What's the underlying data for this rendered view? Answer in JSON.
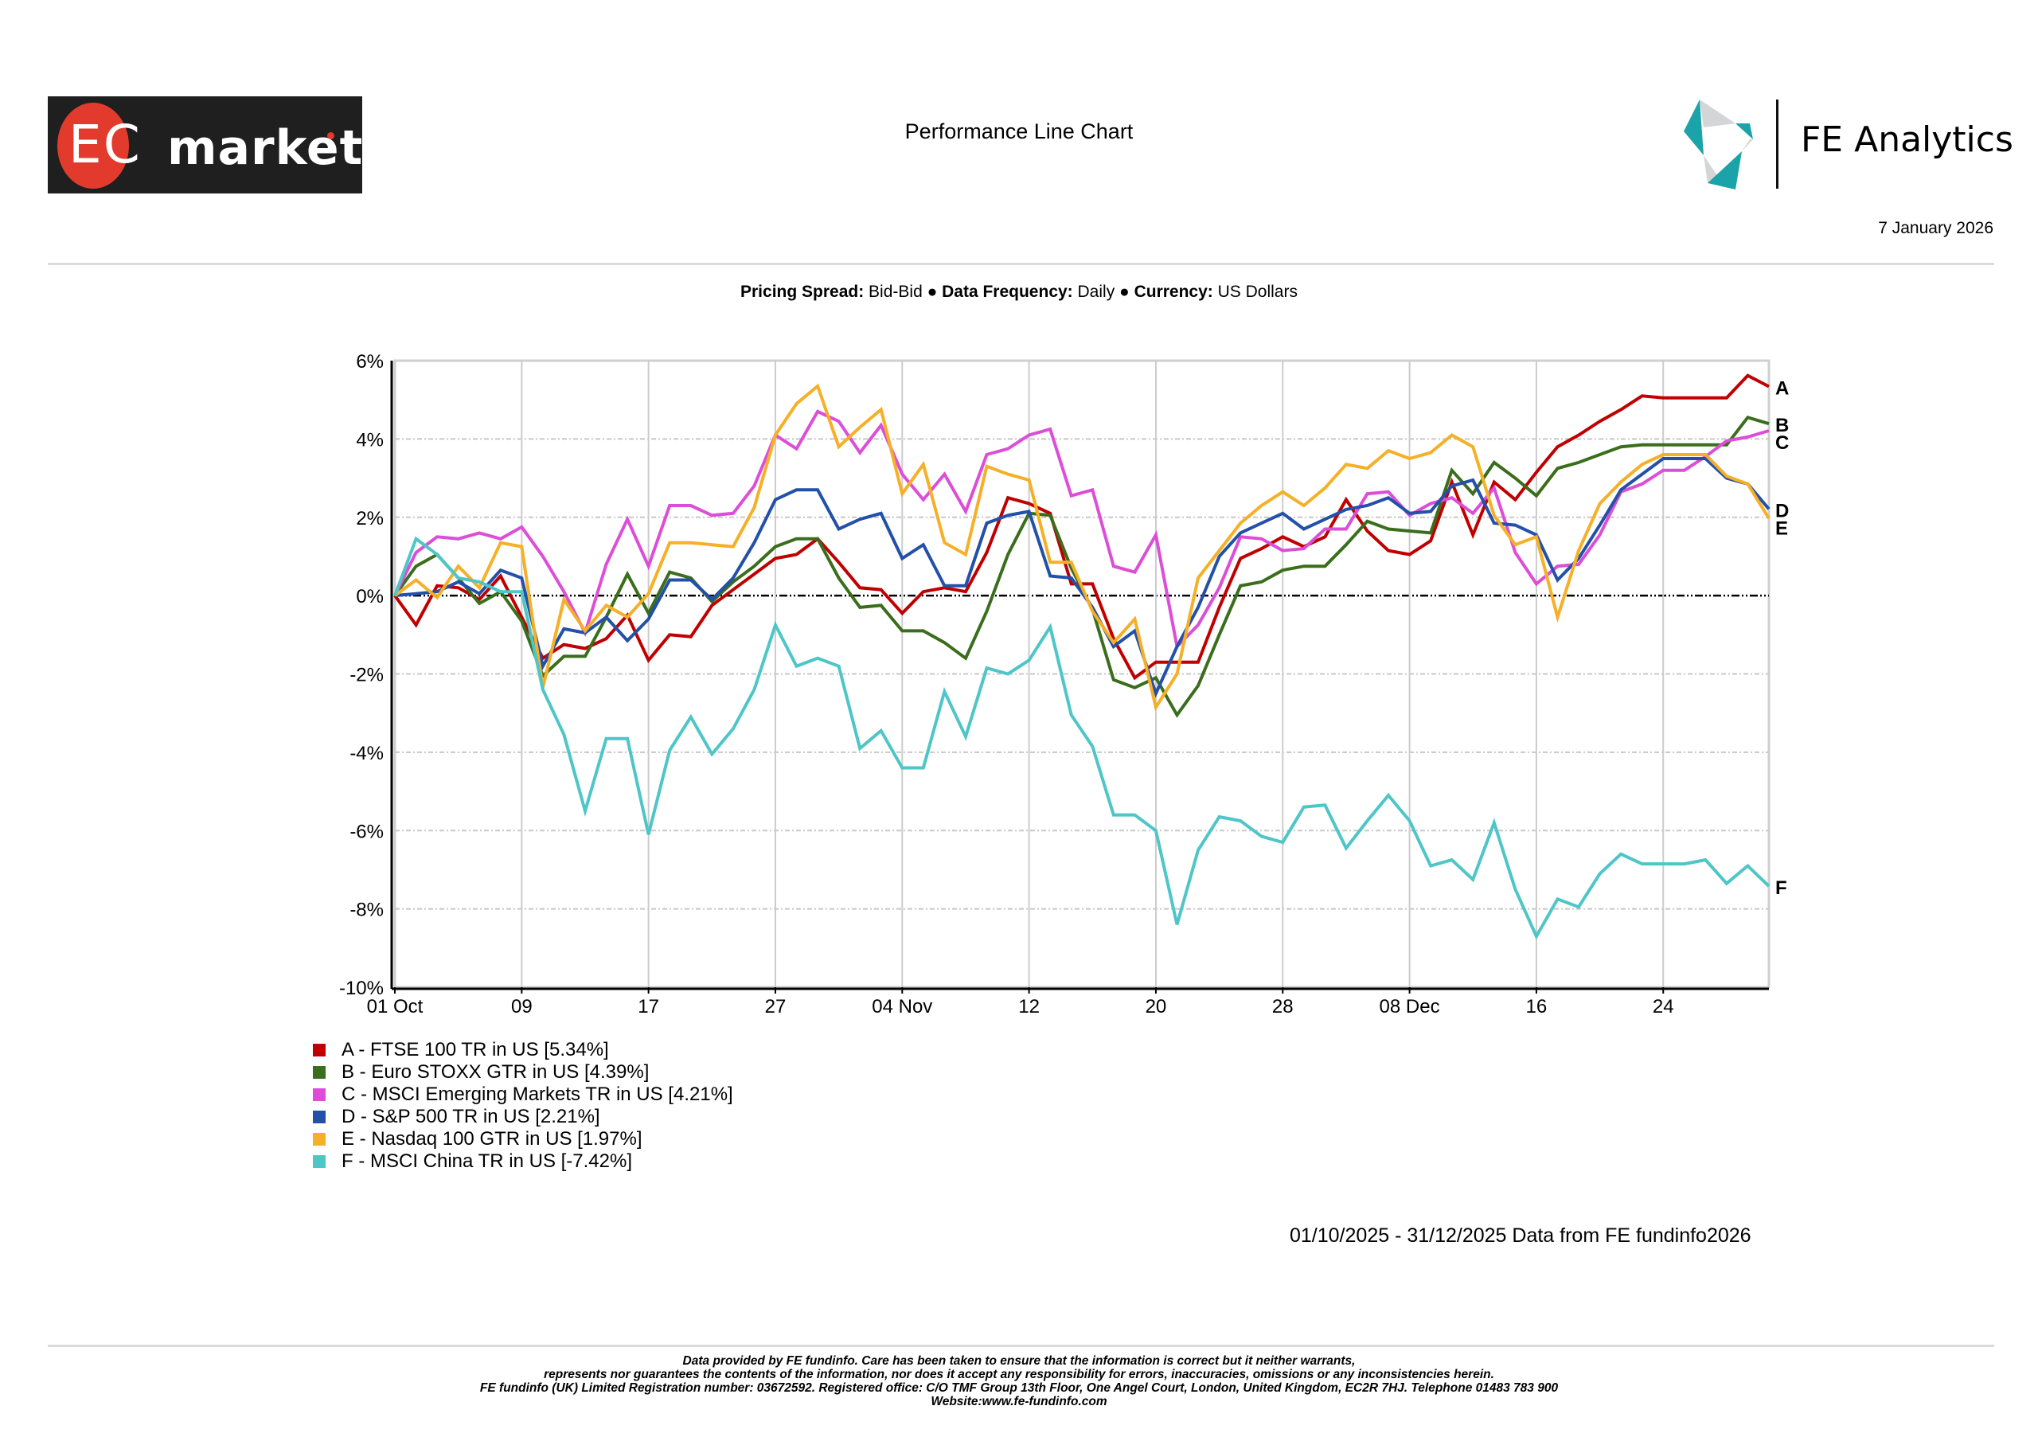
{
  "header": {
    "brand_left": {
      "part1": "EC",
      "part2": "markets"
    },
    "title": "Performance Line Chart",
    "brand_right": "FE Analytics",
    "date": "7 January 2026"
  },
  "subtitle": {
    "pricing_label": "Pricing Spread:",
    "pricing_value": "Bid-Bid",
    "frequency_label": "Data Frequency:",
    "frequency_value": "Daily",
    "currency_label": "Currency:",
    "currency_value": "US Dollars",
    "separator": "●"
  },
  "chart_data": {
    "type": "line",
    "title": "Performance Line Chart",
    "xlabel": "",
    "ylabel": "",
    "ylim": [
      -10,
      6
    ],
    "yticks": [
      "6%",
      "4%",
      "2%",
      "0%",
      "-2%",
      "-4%",
      "-6%",
      "-8%",
      "-10%"
    ],
    "ytick_values": [
      6,
      4,
      2,
      0,
      -2,
      -4,
      -6,
      -8,
      -10
    ],
    "xticks": [
      "01 Oct",
      "09",
      "17",
      "27",
      "04 Nov",
      "12",
      "20",
      "28",
      "08 Dec",
      "16",
      "24"
    ],
    "xtick_index": [
      0,
      6,
      12,
      18,
      24,
      30,
      36,
      42,
      48,
      54,
      60
    ],
    "n_points": 66,
    "grid": true,
    "legend_position": "bottom-left",
    "series": [
      {
        "key": "A",
        "name": "FTSE 100 TR in US",
        "final": "5.34%",
        "color": "#c00000",
        "values": [
          0,
          -0.75,
          0.25,
          0.2,
          -0.1,
          0.5,
          -0.55,
          -1.6,
          -1.25,
          -1.35,
          -1.1,
          -0.5,
          -1.65,
          -1.0,
          -1.05,
          -0.25,
          0.15,
          0.55,
          0.95,
          1.05,
          1.45,
          0.85,
          0.2,
          0.15,
          -0.45,
          0.1,
          0.2,
          0.1,
          1.1,
          2.5,
          2.35,
          2.1,
          0.3,
          0.3,
          -1.1,
          -2.1,
          -1.7,
          -1.7,
          -1.7,
          -0.3,
          0.95,
          1.2,
          1.5,
          1.25,
          1.5,
          2.45,
          1.65,
          1.15,
          1.05,
          1.4,
          2.9,
          1.55,
          2.9,
          2.45,
          3.15,
          3.8,
          4.1,
          4.45,
          4.75,
          5.1,
          5.05,
          5.05,
          5.05,
          5.05,
          5.62,
          5.34
        ]
      },
      {
        "key": "B",
        "name": "Euro STOXX GTR in US",
        "final": "4.39%",
        "color": "#3a6e1c",
        "values": [
          0,
          0.75,
          1.05,
          0.45,
          -0.2,
          0.1,
          -0.65,
          -2.05,
          -1.55,
          -1.55,
          -0.55,
          0.55,
          -0.45,
          0.6,
          0.45,
          -0.15,
          0.35,
          0.75,
          1.25,
          1.45,
          1.45,
          0.45,
          -0.3,
          -0.25,
          -0.9,
          -0.9,
          -1.2,
          -1.6,
          -0.4,
          1.05,
          2.1,
          2.05,
          0.7,
          -0.35,
          -2.15,
          -2.35,
          -2.1,
          -3.05,
          -2.3,
          -1.0,
          0.25,
          0.35,
          0.65,
          0.75,
          0.75,
          1.3,
          1.9,
          1.7,
          1.65,
          1.6,
          3.2,
          2.6,
          3.4,
          3.0,
          2.55,
          3.25,
          3.4,
          3.6,
          3.8,
          3.85,
          3.85,
          3.85,
          3.85,
          3.85,
          4.55,
          4.39
        ]
      },
      {
        "key": "C",
        "name": "MSCI Emerging Markets TR in US",
        "final": "4.21%",
        "color": "#dc4ed8",
        "values": [
          0,
          1.1,
          1.5,
          1.45,
          1.6,
          1.45,
          1.75,
          1.0,
          0.1,
          -0.95,
          0.8,
          1.95,
          0.75,
          2.3,
          2.3,
          2.05,
          2.1,
          2.8,
          4.1,
          3.75,
          4.7,
          4.45,
          3.65,
          4.35,
          3.1,
          2.45,
          3.1,
          2.15,
          3.6,
          3.75,
          4.1,
          4.25,
          2.55,
          2.7,
          0.75,
          0.6,
          1.55,
          -1.3,
          -0.75,
          0.2,
          1.5,
          1.45,
          1.15,
          1.2,
          1.7,
          1.7,
          2.6,
          2.65,
          2.05,
          2.35,
          2.5,
          2.1,
          2.75,
          1.1,
          0.3,
          0.75,
          0.8,
          1.55,
          2.65,
          2.85,
          3.2,
          3.2,
          3.55,
          3.95,
          4.05,
          4.21
        ]
      },
      {
        "key": "D",
        "name": "S&P 500 TR in US",
        "final": "2.21%",
        "color": "#2350a8",
        "values": [
          0,
          0.05,
          0.1,
          0.35,
          0.05,
          0.65,
          0.45,
          -1.8,
          -0.85,
          -0.95,
          -0.55,
          -1.15,
          -0.6,
          0.4,
          0.4,
          -0.1,
          0.45,
          1.35,
          2.45,
          2.7,
          2.7,
          1.7,
          1.95,
          2.1,
          0.95,
          1.3,
          0.25,
          0.25,
          1.85,
          2.05,
          2.15,
          0.5,
          0.45,
          -0.3,
          -1.3,
          -0.9,
          -2.5,
          -1.3,
          -0.3,
          1.0,
          1.6,
          1.85,
          2.1,
          1.7,
          1.95,
          2.2,
          2.3,
          2.5,
          2.1,
          2.15,
          2.8,
          2.95,
          1.85,
          1.8,
          1.55,
          0.4,
          0.95,
          1.8,
          2.7,
          3.1,
          3.5,
          3.5,
          3.5,
          3.0,
          2.85,
          2.21
        ]
      },
      {
        "key": "E",
        "name": "Nasdaq 100 GTR in US",
        "final": "1.97%",
        "color": "#f5b027",
        "values": [
          0,
          0.4,
          -0.05,
          0.75,
          0.2,
          1.35,
          1.25,
          -2.35,
          -0.1,
          -0.9,
          -0.25,
          -0.55,
          0.05,
          1.35,
          1.35,
          1.3,
          1.25,
          2.25,
          4.1,
          4.9,
          5.35,
          3.8,
          4.3,
          4.75,
          2.6,
          3.35,
          1.35,
          1.05,
          3.3,
          3.1,
          2.95,
          0.85,
          0.85,
          -0.4,
          -1.2,
          -0.6,
          -2.85,
          -2.0,
          0.45,
          1.15,
          1.85,
          2.3,
          2.65,
          2.3,
          2.75,
          3.35,
          3.25,
          3.7,
          3.5,
          3.65,
          4.1,
          3.8,
          2.05,
          1.3,
          1.5,
          -0.55,
          1.15,
          2.35,
          2.9,
          3.35,
          3.6,
          3.6,
          3.6,
          3.05,
          2.85,
          1.97
        ]
      },
      {
        "key": "F",
        "name": "MSCI China TR in US",
        "final": "-7.42%",
        "color": "#4ec6c8",
        "values": [
          0,
          1.45,
          1.05,
          0.45,
          0.35,
          0.1,
          0.1,
          -2.4,
          -3.55,
          -5.5,
          -3.65,
          -3.65,
          -6.1,
          -3.95,
          -3.1,
          -4.05,
          -3.4,
          -2.4,
          -0.75,
          -1.8,
          -1.6,
          -1.8,
          -3.9,
          -3.45,
          -4.4,
          -4.4,
          -2.45,
          -3.6,
          -1.85,
          -2.0,
          -1.65,
          -0.8,
          -3.05,
          -3.85,
          -5.6,
          -5.6,
          -6.0,
          -8.4,
          -6.5,
          -5.65,
          -5.75,
          -6.15,
          -6.3,
          -5.4,
          -5.35,
          -6.45,
          -5.75,
          -5.1,
          -5.75,
          -6.9,
          -6.75,
          -7.25,
          -5.8,
          -7.5,
          -8.7,
          -7.75,
          -7.95,
          -7.1,
          -6.6,
          -6.85,
          -6.85,
          -6.85,
          -6.75,
          -7.35,
          -6.9,
          -7.42
        ]
      }
    ]
  },
  "legend": [
    {
      "label": "A - FTSE 100 TR in US [5.34%]"
    },
    {
      "label": "B - Euro STOXX GTR in US [4.39%]"
    },
    {
      "label": "C - MSCI Emerging Markets TR in US [4.21%]"
    },
    {
      "label": "D - S&P 500 TR in US [2.21%]"
    },
    {
      "label": "E - Nasdaq 100 GTR in US [1.97%]"
    },
    {
      "label": "F - MSCI China TR in US [-7.42%]"
    }
  ],
  "date_range": "01/10/2025 - 31/12/2025 Data from FE fundinfo2026",
  "footer": {
    "line1": "Data provided by FE fundinfo. Care has been taken to ensure that the information is correct but it neither warrants,",
    "line2": "represents nor guarantees the contents of the information, nor does it accept any responsibility for errors, inaccuracies, omissions or any inconsistencies herein.",
    "line3": "FE fundinfo (UK) Limited Registration number: 03672592. Registered office: C/O TMF Group 13th Floor, One Angel Court, London, United Kingdom, EC2R 7HJ. Telephone 01483 783 900",
    "line4": "Website:www.fe-fundinfo.com"
  }
}
